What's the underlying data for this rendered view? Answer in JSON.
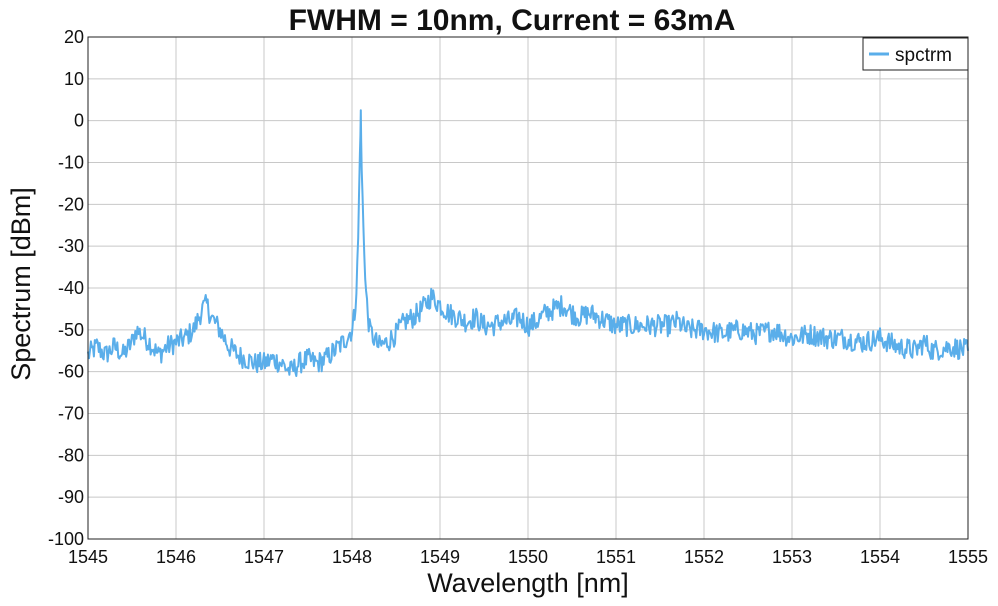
{
  "chart_data": {
    "type": "line",
    "title": "FWHM = 10nm, Current = 63mA",
    "xlabel": "Wavelength [nm]",
    "ylabel": "Spectrum [dBm]",
    "xlim": [
      1545,
      1555
    ],
    "ylim": [
      -100,
      20
    ],
    "xticks": [
      "1545",
      "1546",
      "1547",
      "1548",
      "1549",
      "1550",
      "1551",
      "1552",
      "1553",
      "1554",
      "1555"
    ],
    "yticks": [
      "20",
      "10",
      "0",
      "-10",
      "-20",
      "-30",
      "-40",
      "-50",
      "-60",
      "-70",
      "-80",
      "-90",
      "-100"
    ],
    "grid": true,
    "legend_position": "top-right",
    "series": [
      {
        "name": "spctrm",
        "color": "#5aaeea",
        "x": [
          1545.0,
          1545.1,
          1545.2,
          1545.3,
          1545.4,
          1545.5,
          1545.55,
          1545.6,
          1545.7,
          1545.8,
          1545.9,
          1546.0,
          1546.1,
          1546.2,
          1546.3,
          1546.35,
          1546.4,
          1546.5,
          1546.6,
          1546.7,
          1546.8,
          1546.9,
          1547.0,
          1547.1,
          1547.2,
          1547.3,
          1547.4,
          1547.5,
          1547.6,
          1547.7,
          1547.8,
          1547.9,
          1548.0,
          1548.03,
          1548.05,
          1548.07,
          1548.09,
          1548.1,
          1548.11,
          1548.13,
          1548.15,
          1548.17,
          1548.2,
          1548.25,
          1548.3,
          1548.4,
          1548.5,
          1548.6,
          1548.7,
          1548.8,
          1548.9,
          1549.0,
          1549.1,
          1549.2,
          1549.3,
          1549.4,
          1549.5,
          1549.6,
          1549.7,
          1549.8,
          1549.9,
          1550.0,
          1550.1,
          1550.2,
          1550.3,
          1550.4,
          1550.5,
          1550.6,
          1550.7,
          1550.8,
          1550.9,
          1551.0,
          1551.2,
          1551.4,
          1551.6,
          1551.7,
          1551.8,
          1552.0,
          1552.2,
          1552.4,
          1552.6,
          1552.8,
          1553.0,
          1553.2,
          1553.4,
          1553.6,
          1553.8,
          1554.0,
          1554.2,
          1554.4,
          1554.5,
          1554.6,
          1554.8,
          1555.0
        ],
        "y": [
          -56,
          -54,
          -56,
          -54,
          -56,
          -53,
          -50,
          -51,
          -53,
          -56,
          -54,
          -53,
          -52,
          -50,
          -45,
          -44,
          -47,
          -50,
          -54,
          -56,
          -57,
          -58,
          -58,
          -57,
          -58,
          -60,
          -58,
          -57,
          -58,
          -57,
          -55,
          -53,
          -50,
          -46,
          -40,
          -28,
          -8,
          2,
          -12,
          -25,
          -38,
          -44,
          -50,
          -52,
          -54,
          -53,
          -51,
          -48,
          -47,
          -45,
          -42,
          -44,
          -46,
          -47,
          -48,
          -47,
          -49,
          -49,
          -48,
          -48,
          -47,
          -49,
          -48,
          -46,
          -45,
          -44,
          -46,
          -47,
          -46,
          -47,
          -48,
          -49,
          -49,
          -49,
          -49,
          -48,
          -50,
          -50,
          -51,
          -50,
          -51,
          -50,
          -52,
          -51,
          -52,
          -52,
          -53,
          -52,
          -54,
          -55,
          -53,
          -55,
          -54,
          -55
        ]
      }
    ]
  }
}
